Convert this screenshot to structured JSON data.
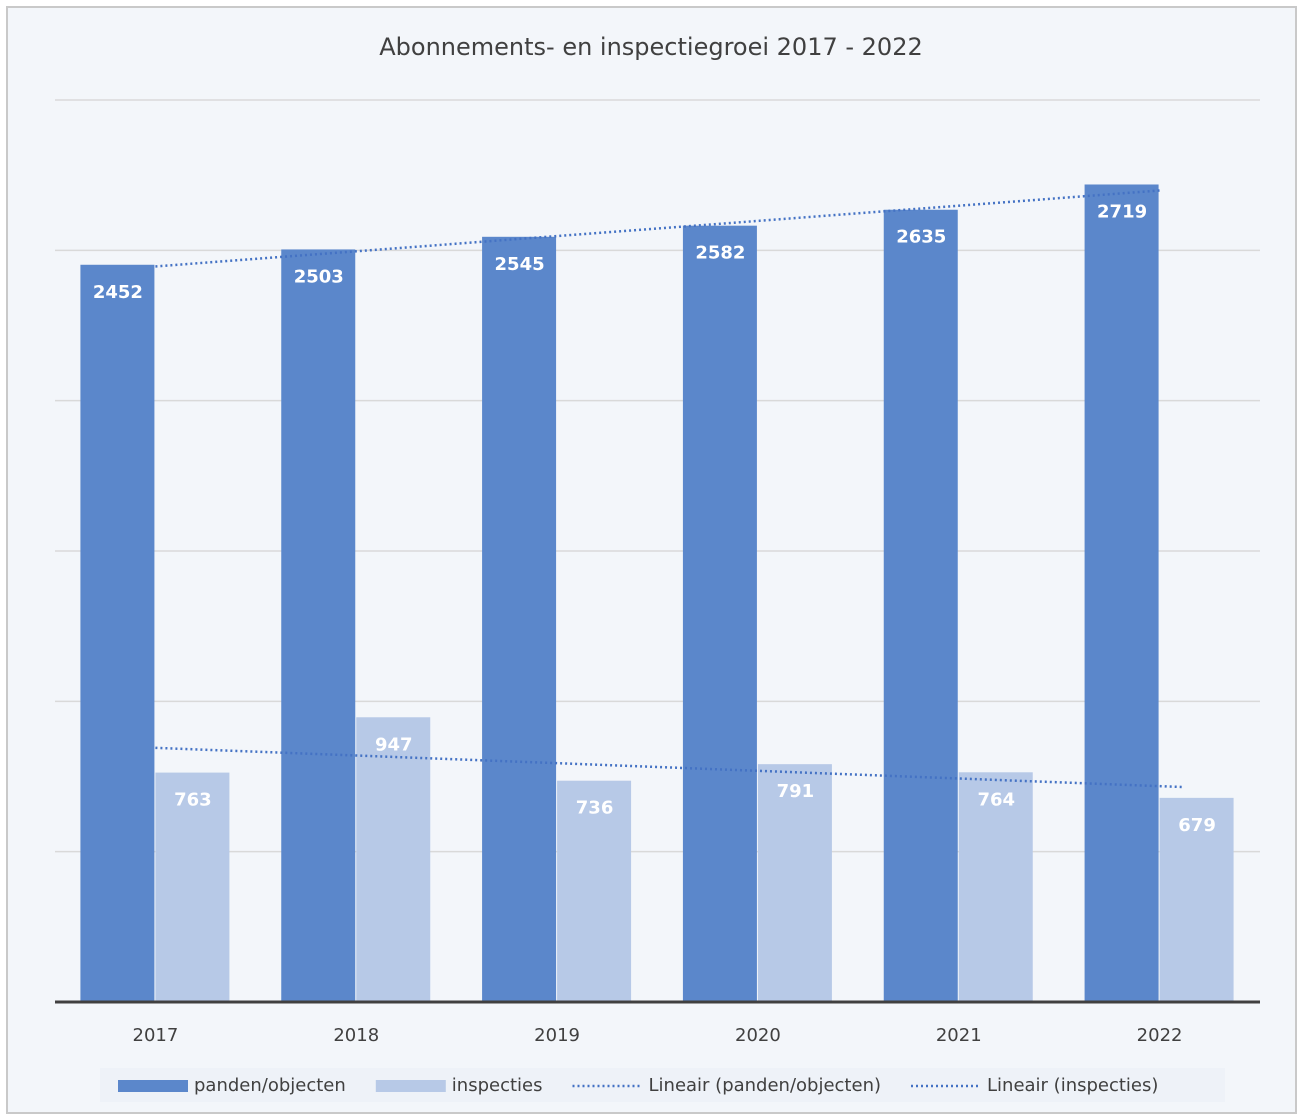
{
  "chart_data": {
    "type": "bar",
    "title": "Abonnements- en inspectiegroei 2017 - 2022",
    "categories": [
      "2017",
      "2018",
      "2019",
      "2020",
      "2021",
      "2022"
    ],
    "series": [
      {
        "name": "panden/objecten",
        "color": "#5b87cb",
        "values": [
          2452,
          2503,
          2545,
          2582,
          2635,
          2719
        ]
      },
      {
        "name": "inspecties",
        "color": "#b7c9e7",
        "values": [
          763,
          947,
          736,
          791,
          764,
          679
        ]
      }
    ],
    "trendlines": [
      {
        "name": "Lineair (panden/objecten)",
        "color": "#4472c4"
      },
      {
        "name": "Lineair (inspecties)",
        "color": "#4472c4"
      }
    ],
    "ylim": [
      0,
      3000
    ],
    "yticks": [
      0,
      500,
      1000,
      1500,
      2000,
      2500,
      3000
    ],
    "grid": true
  }
}
